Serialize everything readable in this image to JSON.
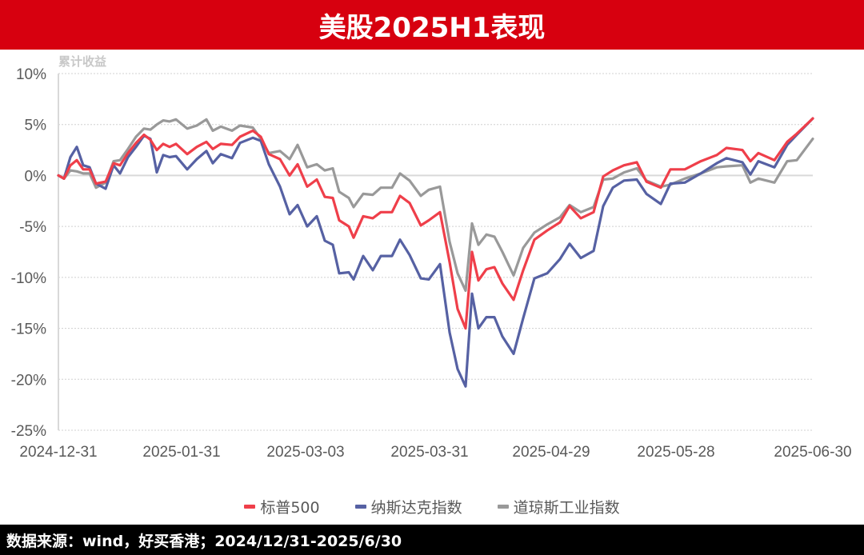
{
  "header": {
    "title": "美股2025H1表现"
  },
  "footer": {
    "source": "数据来源：wind，好买香港；2024/12/31-2025/6/30"
  },
  "legend": [
    {
      "label": "标普500",
      "color": "#ef3f4a"
    },
    {
      "label": "纳斯达克指数",
      "color": "#5661a3"
    },
    {
      "label": "道琼斯工业指数",
      "color": "#999999"
    }
  ],
  "chart_data": {
    "type": "line",
    "title": "美股2025H1表现",
    "ylabel": "累计收益",
    "xlabel": "",
    "ylim": [
      -25,
      10
    ],
    "yticks": [
      "10%",
      "5%",
      "0%",
      "-5%",
      "-10%",
      "-15%",
      "-20%",
      "-25%"
    ],
    "ytick_values": [
      10,
      5,
      0,
      -5,
      -10,
      -15,
      -20,
      -25
    ],
    "xtick_labels": [
      "2024-12-31",
      "2025-01-31",
      "2025-03-03",
      "2025-03-31",
      "2025-04-29",
      "2025-05-28",
      "2025-06-30"
    ],
    "grid": true,
    "legend_position": "bottom",
    "x": [
      0,
      7,
      15,
      23,
      31,
      39,
      47,
      59,
      69,
      77,
      87,
      97,
      107,
      115,
      123,
      131,
      139,
      147,
      161,
      173,
      185,
      193,
      203,
      217,
      227,
      243,
      253,
      263,
      277,
      289,
      299,
      311,
      323,
      333,
      343,
      351,
      363,
      369,
      381,
      393,
      403,
      417,
      427,
      439,
      453,
      463,
      477,
      489,
      499,
      509,
      517,
      525,
      535,
      545,
      555,
      569,
      581,
      595,
      611,
      627,
      639,
      653,
      669,
      681,
      693,
      707,
      723,
      735,
      753,
      765,
      783,
      803,
      823,
      835,
      855,
      865,
      875,
      895,
      911,
      923,
      943
    ],
    "x_range_pixels_note": "index ~ trading days, 0..943 mapped across plot",
    "series": [
      {
        "name": "标普500",
        "color": "#ef3f4a",
        "values": [
          0,
          -0.3,
          1.0,
          1.5,
          0.6,
          0.6,
          -0.8,
          -0.6,
          1.2,
          1.0,
          2.2,
          3.2,
          4.0,
          3.5,
          2.5,
          3.1,
          2.8,
          3.1,
          2.1,
          2.8,
          3.3,
          2.6,
          3.1,
          3.0,
          3.8,
          4.4,
          3.8,
          2.1,
          1.6,
          0,
          1.1,
          -1.1,
          -0.4,
          -2.1,
          -2.2,
          -4.4,
          -5.0,
          -6.1,
          -4.0,
          -4.2,
          -3.6,
          -3.6,
          -2.0,
          -2.7,
          -4.9,
          -4.4,
          -3.6,
          -8.5,
          -13.1,
          -15.0,
          -7.5,
          -10.3,
          -9.2,
          -9.0,
          -10.6,
          -12.2,
          -9.3,
          -6.3,
          -5.4,
          -4.6,
          -3.0,
          -4.2,
          -3.6,
          -0.1,
          0.5,
          1.0,
          1.3,
          -0.6,
          -1.2,
          0.6,
          0.6,
          1.4,
          2.0,
          2.7,
          2.5,
          1.4,
          2.2,
          1.5,
          3.3,
          4.1,
          5.6
        ]
      },
      {
        "name": "纳斯达克指数",
        "color": "#5661a3",
        "values": [
          0,
          -0.3,
          1.8,
          2.8,
          1.0,
          0.8,
          -0.8,
          -1.3,
          1.0,
          0.2,
          1.8,
          2.8,
          3.9,
          3.6,
          0.3,
          2.0,
          1.8,
          1.9,
          0.6,
          1.6,
          2.4,
          1.2,
          2.1,
          1.7,
          3.2,
          3.7,
          3.4,
          1.1,
          -1.1,
          -3.8,
          -2.9,
          -5.0,
          -4.0,
          -6.4,
          -6.8,
          -9.6,
          -9.5,
          -10.2,
          -7.9,
          -9.3,
          -7.9,
          -7.9,
          -6.3,
          -7.8,
          -10.1,
          -10.2,
          -8.7,
          -15.4,
          -19.0,
          -20.7,
          -11.6,
          -15.0,
          -13.9,
          -13.9,
          -15.8,
          -17.5,
          -14.0,
          -10.1,
          -9.6,
          -8.2,
          -6.7,
          -8.1,
          -7.4,
          -3.0,
          -1.2,
          -0.5,
          -0.4,
          -1.8,
          -2.8,
          -0.8,
          -0.7,
          0.2,
          1.2,
          1.7,
          1.3,
          0.1,
          1.4,
          0.8,
          3.0,
          4.0,
          5.6
        ]
      },
      {
        "name": "道琼斯工业指数",
        "color": "#999999",
        "values": [
          0,
          -0.3,
          0.5,
          0.4,
          0.2,
          0.2,
          -1.2,
          -0.7,
          1.4,
          1.5,
          2.6,
          3.8,
          4.6,
          4.5,
          5.0,
          5.4,
          5.3,
          5.5,
          4.6,
          4.9,
          5.5,
          4.4,
          4.8,
          4.4,
          4.9,
          4.7,
          3.6,
          2.2,
          2.4,
          1.6,
          3.0,
          0.8,
          1.1,
          0.5,
          0.7,
          -1.6,
          -2.2,
          -3.1,
          -1.8,
          -1.9,
          -1.2,
          -1.2,
          0.2,
          -0.5,
          -2.0,
          -1.4,
          -1.1,
          -6.5,
          -9.6,
          -11.3,
          -4.7,
          -6.8,
          -5.8,
          -6.0,
          -7.5,
          -9.8,
          -7.1,
          -5.6,
          -4.8,
          -4.1,
          -2.9,
          -3.6,
          -3.1,
          -0.4,
          -0.3,
          0.3,
          0.7,
          -0.5,
          -1.1,
          -0.9,
          -0.3,
          0.2,
          0.8,
          0.9,
          1.0,
          -0.7,
          -0.3,
          -0.7,
          1.4,
          1.5,
          3.6
        ]
      }
    ]
  }
}
